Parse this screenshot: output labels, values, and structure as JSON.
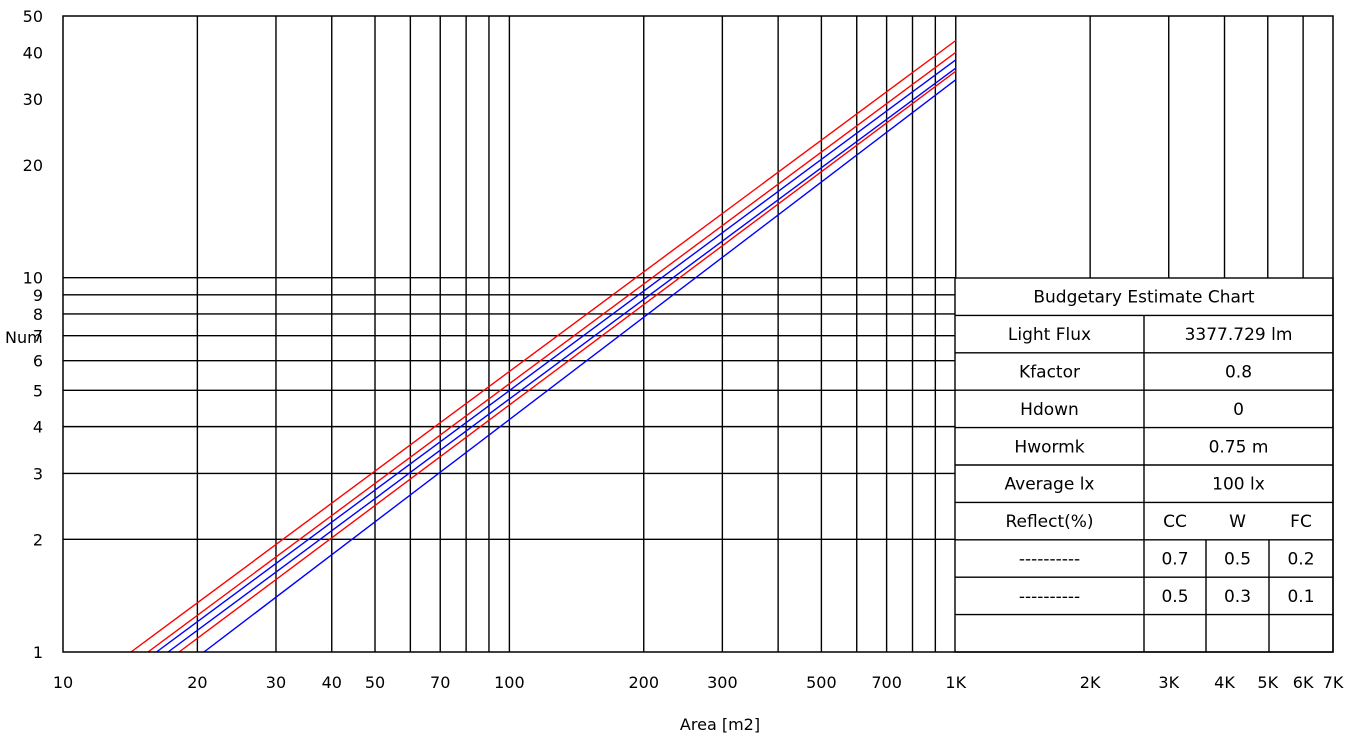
{
  "chart_data": {
    "type": "line",
    "xlabel": "Area [m2]",
    "ylabel": "Num",
    "x_scale": "log",
    "y_scale": "log",
    "xlim": [
      10,
      7000
    ],
    "ylim": [
      1,
      50
    ],
    "grid": true,
    "x_ticks": [
      {
        "value": 10,
        "label": "10"
      },
      {
        "value": 20,
        "label": "20"
      },
      {
        "value": 30,
        "label": "30"
      },
      {
        "value": 40,
        "label": "40"
      },
      {
        "value": 50,
        "label": "50"
      },
      {
        "value": 70,
        "label": "70"
      },
      {
        "value": 100,
        "label": "100"
      },
      {
        "value": 200,
        "label": "200"
      },
      {
        "value": 300,
        "label": "300"
      },
      {
        "value": 500,
        "label": "500"
      },
      {
        "value": 700,
        "label": "700"
      },
      {
        "value": 1000,
        "label": "1K"
      },
      {
        "value": 2000,
        "label": "2K"
      },
      {
        "value": 3000,
        "label": "3K"
      },
      {
        "value": 4000,
        "label": "4K"
      },
      {
        "value": 5000,
        "label": "5K"
      },
      {
        "value": 6000,
        "label": "6K"
      },
      {
        "value": 7000,
        "label": "7K"
      }
    ],
    "x_grid": [
      20,
      30,
      40,
      50,
      60,
      70,
      80,
      90,
      100,
      200,
      300,
      400,
      500,
      600,
      700,
      800,
      900,
      1000,
      2000,
      3000,
      4000,
      5000,
      6000
    ],
    "y_ticks": [
      {
        "value": 1,
        "label": "1"
      },
      {
        "value": 2,
        "label": "2"
      },
      {
        "value": 3,
        "label": "3"
      },
      {
        "value": 4,
        "label": "4"
      },
      {
        "value": 5,
        "label": "5"
      },
      {
        "value": 6,
        "label": "6"
      },
      {
        "value": 7,
        "label": "7"
      },
      {
        "value": 8,
        "label": "8"
      },
      {
        "value": 9,
        "label": "9"
      },
      {
        "value": 10,
        "label": "10"
      },
      {
        "value": 20,
        "label": "20"
      },
      {
        "value": 30,
        "label": "30"
      },
      {
        "value": 40,
        "label": "40"
      },
      {
        "value": 50,
        "label": "50"
      }
    ],
    "y_grid": [
      2,
      3,
      4,
      5,
      6,
      7,
      8,
      9,
      10
    ],
    "series": [
      {
        "color": "#ff0000",
        "points": [
          [
            14.2,
            1
          ],
          [
            1000,
            43
          ]
        ]
      },
      {
        "color": "#ff0000",
        "points": [
          [
            15.5,
            1
          ],
          [
            1000,
            40
          ]
        ]
      },
      {
        "color": "#0000ff",
        "points": [
          [
            16.2,
            1
          ],
          [
            1000,
            38.2
          ]
        ]
      },
      {
        "color": "#0000ff",
        "points": [
          [
            17.2,
            1
          ],
          [
            1000,
            36.3
          ]
        ]
      },
      {
        "color": "#ff0000",
        "points": [
          [
            18.2,
            1
          ],
          [
            1000,
            35.6
          ]
        ]
      },
      {
        "color": "#0000ff",
        "points": [
          [
            20.7,
            1
          ],
          [
            1000,
            33.8
          ]
        ]
      }
    ]
  },
  "table": {
    "title": "Budgetary Estimate Chart",
    "rows": [
      {
        "label": "Light Flux",
        "value": "3377.729 lm"
      },
      {
        "label": "Kfactor",
        "value": "0.8"
      },
      {
        "label": "Hdown",
        "value": "0"
      },
      {
        "label": "Hwormk",
        "value": "0.75 m"
      },
      {
        "label": "Average lx",
        "value": "100 lx"
      }
    ],
    "reflect_header": {
      "label": "Reflect(%)",
      "cc": "CC",
      "w": "W",
      "fc": "FC"
    },
    "reflect_rows": [
      {
        "line": "----------",
        "color": "#0000ff",
        "cc": "0.7",
        "w": "0.5",
        "fc": "0.2"
      },
      {
        "line": "----------",
        "color": "#ff0000",
        "cc": "0.5",
        "w": "0.3",
        "fc": "0.1"
      }
    ]
  }
}
